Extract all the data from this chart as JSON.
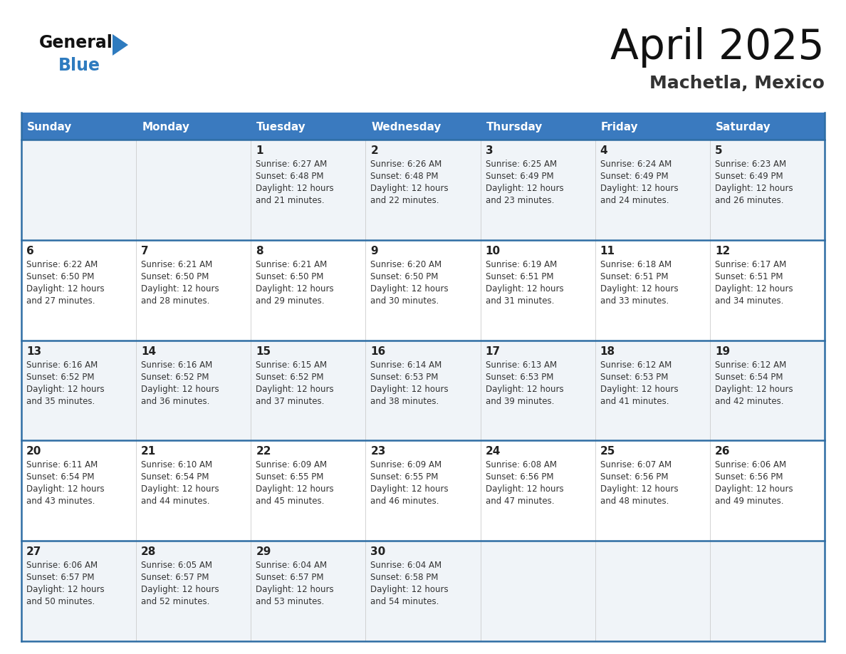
{
  "title": "April 2025",
  "subtitle": "Machetla, Mexico",
  "header_bg": "#3a7abf",
  "header_text_color": "#ffffff",
  "day_headers": [
    "Sunday",
    "Monday",
    "Tuesday",
    "Wednesday",
    "Thursday",
    "Friday",
    "Saturday"
  ],
  "row_bg_colors": [
    "#f0f4f8",
    "#ffffff",
    "#f0f4f8",
    "#ffffff",
    "#f0f4f8"
  ],
  "cell_border_color": "#2e6da4",
  "date_color": "#222222",
  "info_color": "#333333",
  "logo_general_color": "#111111",
  "logo_blue_color": "#2e7bbf",
  "logo_triangle_color": "#2e7bbf",
  "days": [
    {
      "day": 1,
      "col": 2,
      "row": 0,
      "sunrise": "6:27 AM",
      "sunset": "6:48 PM",
      "minutes": "21"
    },
    {
      "day": 2,
      "col": 3,
      "row": 0,
      "sunrise": "6:26 AM",
      "sunset": "6:48 PM",
      "minutes": "22"
    },
    {
      "day": 3,
      "col": 4,
      "row": 0,
      "sunrise": "6:25 AM",
      "sunset": "6:49 PM",
      "minutes": "23"
    },
    {
      "day": 4,
      "col": 5,
      "row": 0,
      "sunrise": "6:24 AM",
      "sunset": "6:49 PM",
      "minutes": "24"
    },
    {
      "day": 5,
      "col": 6,
      "row": 0,
      "sunrise": "6:23 AM",
      "sunset": "6:49 PM",
      "minutes": "26"
    },
    {
      "day": 6,
      "col": 0,
      "row": 1,
      "sunrise": "6:22 AM",
      "sunset": "6:50 PM",
      "minutes": "27"
    },
    {
      "day": 7,
      "col": 1,
      "row": 1,
      "sunrise": "6:21 AM",
      "sunset": "6:50 PM",
      "minutes": "28"
    },
    {
      "day": 8,
      "col": 2,
      "row": 1,
      "sunrise": "6:21 AM",
      "sunset": "6:50 PM",
      "minutes": "29"
    },
    {
      "day": 9,
      "col": 3,
      "row": 1,
      "sunrise": "6:20 AM",
      "sunset": "6:50 PM",
      "minutes": "30"
    },
    {
      "day": 10,
      "col": 4,
      "row": 1,
      "sunrise": "6:19 AM",
      "sunset": "6:51 PM",
      "minutes": "31"
    },
    {
      "day": 11,
      "col": 5,
      "row": 1,
      "sunrise": "6:18 AM",
      "sunset": "6:51 PM",
      "minutes": "33"
    },
    {
      "day": 12,
      "col": 6,
      "row": 1,
      "sunrise": "6:17 AM",
      "sunset": "6:51 PM",
      "minutes": "34"
    },
    {
      "day": 13,
      "col": 0,
      "row": 2,
      "sunrise": "6:16 AM",
      "sunset": "6:52 PM",
      "minutes": "35"
    },
    {
      "day": 14,
      "col": 1,
      "row": 2,
      "sunrise": "6:16 AM",
      "sunset": "6:52 PM",
      "minutes": "36"
    },
    {
      "day": 15,
      "col": 2,
      "row": 2,
      "sunrise": "6:15 AM",
      "sunset": "6:52 PM",
      "minutes": "37"
    },
    {
      "day": 16,
      "col": 3,
      "row": 2,
      "sunrise": "6:14 AM",
      "sunset": "6:53 PM",
      "minutes": "38"
    },
    {
      "day": 17,
      "col": 4,
      "row": 2,
      "sunrise": "6:13 AM",
      "sunset": "6:53 PM",
      "minutes": "39"
    },
    {
      "day": 18,
      "col": 5,
      "row": 2,
      "sunrise": "6:12 AM",
      "sunset": "6:53 PM",
      "minutes": "41"
    },
    {
      "day": 19,
      "col": 6,
      "row": 2,
      "sunrise": "6:12 AM",
      "sunset": "6:54 PM",
      "minutes": "42"
    },
    {
      "day": 20,
      "col": 0,
      "row": 3,
      "sunrise": "6:11 AM",
      "sunset": "6:54 PM",
      "minutes": "43"
    },
    {
      "day": 21,
      "col": 1,
      "row": 3,
      "sunrise": "6:10 AM",
      "sunset": "6:54 PM",
      "minutes": "44"
    },
    {
      "day": 22,
      "col": 2,
      "row": 3,
      "sunrise": "6:09 AM",
      "sunset": "6:55 PM",
      "minutes": "45"
    },
    {
      "day": 23,
      "col": 3,
      "row": 3,
      "sunrise": "6:09 AM",
      "sunset": "6:55 PM",
      "minutes": "46"
    },
    {
      "day": 24,
      "col": 4,
      "row": 3,
      "sunrise": "6:08 AM",
      "sunset": "6:56 PM",
      "minutes": "47"
    },
    {
      "day": 25,
      "col": 5,
      "row": 3,
      "sunrise": "6:07 AM",
      "sunset": "6:56 PM",
      "minutes": "48"
    },
    {
      "day": 26,
      "col": 6,
      "row": 3,
      "sunrise": "6:06 AM",
      "sunset": "6:56 PM",
      "minutes": "49"
    },
    {
      "day": 27,
      "col": 0,
      "row": 4,
      "sunrise": "6:06 AM",
      "sunset": "6:57 PM",
      "minutes": "50"
    },
    {
      "day": 28,
      "col": 1,
      "row": 4,
      "sunrise": "6:05 AM",
      "sunset": "6:57 PM",
      "minutes": "52"
    },
    {
      "day": 29,
      "col": 2,
      "row": 4,
      "sunrise": "6:04 AM",
      "sunset": "6:57 PM",
      "minutes": "53"
    },
    {
      "day": 30,
      "col": 3,
      "row": 4,
      "sunrise": "6:04 AM",
      "sunset": "6:58 PM",
      "minutes": "54"
    }
  ]
}
